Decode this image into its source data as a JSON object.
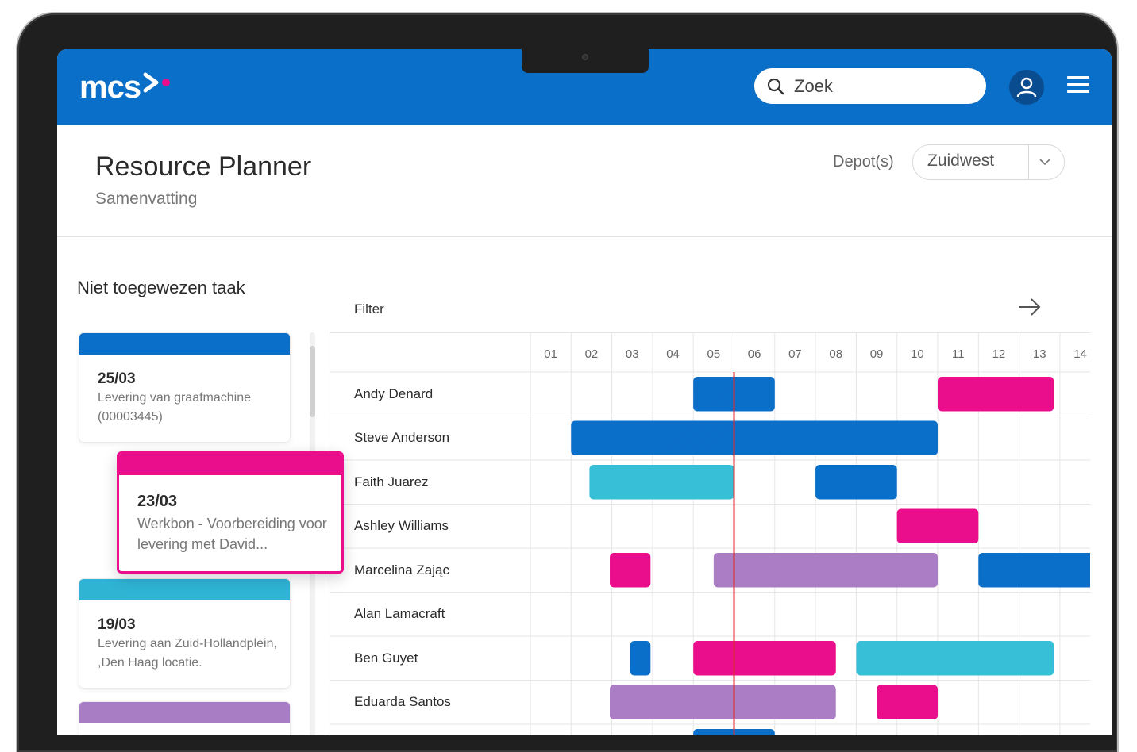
{
  "header": {
    "logo_text": "mcs",
    "search_placeholder": "Zoek",
    "accent_color": "#0a6fc9",
    "logo_accent": "#ea0d8c"
  },
  "page": {
    "title": "Resource Planner",
    "subtitle": "Samenvatting",
    "depot_label": "Depot(s)",
    "depot_value": "Zuidwest"
  },
  "unassigned": {
    "title": "Niet toegewezen taak",
    "cards": [
      {
        "date": "25/03",
        "line1": "Levering van graafmachine",
        "line2": "(00003445)",
        "color": "#0a6fc9"
      },
      {
        "date": "23/03",
        "line1": "Werkbon  - Voorbereiding voor",
        "line2": "levering met David...",
        "color": "#ea0d8c"
      },
      {
        "date": "19/03",
        "line1": "Levering aan Zuid-Hollandplein,",
        "line2": ",Den Haag locatie.",
        "color": "#2fb4d4"
      },
      {
        "date": "",
        "line1": "",
        "line2": "",
        "color": "#a97dc4"
      }
    ]
  },
  "gantt": {
    "filter_label": "Filter",
    "days": [
      "01",
      "02",
      "03",
      "04",
      "05",
      "06",
      "07",
      "08",
      "09",
      "10",
      "11",
      "12",
      "13",
      "14"
    ],
    "now_day": 6,
    "colors": {
      "blue": "#0a6fc9",
      "pink": "#ea0d8c",
      "cyan": "#36bfd6",
      "purple": "#ab7dc4",
      "now_line": "#e02b2b"
    },
    "resources": [
      {
        "name": "Andy Denard",
        "tasks": [
          {
            "start": 5,
            "end": 7,
            "color": "blue",
            "planned_until": 6
          },
          {
            "start": 11,
            "end": 13.85,
            "color": "pink"
          }
        ]
      },
      {
        "name": "Steve Anderson",
        "tasks": [
          {
            "start": 2,
            "end": 11,
            "color": "blue",
            "planned_until": 6
          }
        ]
      },
      {
        "name": "Faith Juarez",
        "tasks": [
          {
            "start": 2.45,
            "end": 6,
            "color": "cyan"
          },
          {
            "start": 8,
            "end": 10,
            "color": "blue"
          }
        ]
      },
      {
        "name": "Ashley Williams",
        "tasks": [
          {
            "start": 10,
            "end": 12,
            "color": "pink"
          }
        ]
      },
      {
        "name": "Marcelina Zając",
        "tasks": [
          {
            "start": 2.95,
            "end": 3.95,
            "color": "pink"
          },
          {
            "start": 5.5,
            "end": 11,
            "color": "purple"
          },
          {
            "start": 12,
            "end": 15,
            "color": "blue"
          }
        ]
      },
      {
        "name": "Alan Lamacraft",
        "tasks": []
      },
      {
        "name": "Ben Guyet",
        "tasks": [
          {
            "start": 3.45,
            "end": 3.95,
            "color": "blue"
          },
          {
            "start": 5,
            "end": 8.5,
            "color": "pink"
          },
          {
            "start": 9,
            "end": 13.85,
            "color": "cyan"
          }
        ]
      },
      {
        "name": "Eduarda Santos",
        "tasks": [
          {
            "start": 2.95,
            "end": 8.5,
            "color": "purple",
            "planned_until": 6
          },
          {
            "start": 9.5,
            "end": 11,
            "color": "pink"
          }
        ]
      },
      {
        "name": "",
        "tasks": [
          {
            "start": 5,
            "end": 7,
            "color": "blue",
            "planned_until": 6
          }
        ]
      }
    ]
  }
}
